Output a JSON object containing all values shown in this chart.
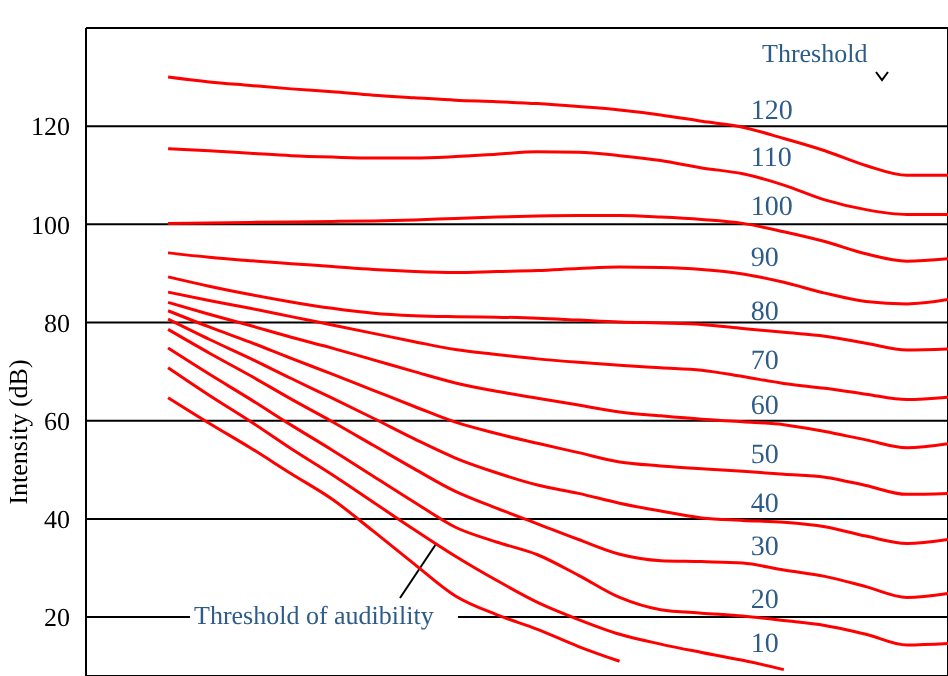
{
  "chart_data": {
    "type": "line",
    "ylabel": "Intensity (dB)",
    "categories": [
      null,
      null,
      null,
      null,
      null,
      null,
      null,
      null,
      null,
      null,
      null,
      null,
      null,
      null,
      null,
      null,
      null,
      null,
      null,
      null,
      null,
      null
    ],
    "series": [
      {
        "name": "120",
        "color": "#ff0000",
        "values": [
          null,
          null,
          130,
          129,
          128.3,
          127.6,
          127,
          126.3,
          125.8,
          125.3,
          125,
          124.6,
          124,
          123.3,
          122.3,
          121,
          119.8,
          117.5,
          115,
          112,
          110,
          110
        ]
      },
      {
        "name": "110",
        "color": "#ff0000",
        "values": [
          null,
          null,
          115.4,
          115,
          114.5,
          114,
          113.7,
          113.5,
          113.5,
          113.8,
          114.3,
          114.8,
          114.7,
          114,
          113,
          111.5,
          110.3,
          108,
          105,
          103,
          102,
          102
        ]
      },
      {
        "name": "100",
        "color": "#ff0000",
        "values": [
          null,
          null,
          100.2,
          100.3,
          100.4,
          100.5,
          100.6,
          100.7,
          100.9,
          101.2,
          101.5,
          101.7,
          101.8,
          101.8,
          101.5,
          101,
          100.2,
          98.5,
          96.5,
          94,
          92.5,
          93
        ]
      },
      {
        "name": "90",
        "color": "#ff0000",
        "values": [
          null,
          null,
          94.2,
          93.3,
          92.6,
          92,
          91.4,
          90.8,
          90.4,
          90.2,
          90.4,
          90.6,
          91,
          91.3,
          91.2,
          90.8,
          89.9,
          88.2,
          86,
          84.3,
          83.8,
          84.7
        ]
      },
      {
        "name": "80",
        "color": "#ff0000",
        "values": [
          null,
          null,
          89.3,
          87.4,
          85.7,
          84.2,
          82.9,
          81.9,
          81.4,
          81.2,
          81.1,
          80.9,
          80.5,
          80.1,
          79.9,
          79.6,
          78.8,
          78,
          77.2,
          75.8,
          74.4,
          74.6
        ]
      },
      {
        "name": "70",
        "color": "#ff0000",
        "values": [
          null,
          null,
          86.2,
          84.5,
          82.9,
          81.2,
          79.5,
          77.8,
          76.1,
          74.5,
          73.5,
          72.6,
          71.9,
          71.3,
          70.8,
          70.3,
          69,
          67.6,
          66.6,
          65.4,
          64.3,
          64.8
        ]
      },
      {
        "name": "60",
        "color": "#ff0000",
        "values": [
          null,
          null,
          84.1,
          81.7,
          79.4,
          77,
          74.8,
          72.4,
          70,
          67.7,
          66,
          64.6,
          63.2,
          61.8,
          61,
          60.3,
          59.8,
          59.2,
          57.8,
          56.1,
          54.5,
          55.3
        ]
      },
      {
        "name": "50",
        "color": "#ff0000",
        "values": [
          null,
          null,
          82.4,
          79.1,
          76,
          72.7,
          69.5,
          66.2,
          62.9,
          59.7,
          57.4,
          55.4,
          53.5,
          51.6,
          50.8,
          50.2,
          49.7,
          49.1,
          48.5,
          46.8,
          45,
          45.2
        ]
      },
      {
        "name": "40",
        "color": "#ff0000",
        "values": [
          null,
          null,
          80.7,
          76.6,
          72.7,
          68.6,
          64.6,
          60.5,
          56.3,
          52.4,
          49.4,
          46.9,
          45.2,
          43.2,
          41.6,
          40.2,
          39.7,
          39.3,
          38.4,
          36.5,
          35,
          35.8
        ]
      },
      {
        "name": "30",
        "color": "#ff0000",
        "values": [
          null,
          null,
          78.6,
          73.8,
          69.2,
          64.4,
          59.8,
          55,
          50.2,
          45.6,
          42.2,
          39,
          35.8,
          32.8,
          31.5,
          31.3,
          31,
          29.6,
          28.3,
          26.2,
          24,
          24.8
        ]
      },
      {
        "name": "20",
        "color": "#ff0000",
        "values": [
          null,
          null,
          74.8,
          69.5,
          64.4,
          59.1,
          54,
          48.7,
          43.4,
          38.3,
          35.3,
          32.7,
          28.5,
          24,
          21.5,
          20.8,
          20.2,
          19.3,
          18.3,
          16.5,
          14.3,
          14.6
        ]
      },
      {
        "name": "10",
        "color": "#ff0000",
        "values": [
          null,
          null,
          70.8,
          65.2,
          59.9,
          54.3,
          49,
          43.4,
          37.8,
          32.4,
          27.5,
          23,
          19.5,
          16.5,
          14.5,
          12.8,
          11.2,
          9.3,
          null,
          null,
          null,
          null
        ]
      },
      {
        "color": "#ff0000",
        "values": [
          null,
          null,
          64.7,
          59.5,
          54.5,
          49.2,
          44,
          37.5,
          30.8,
          24.3,
          20.5,
          17.5,
          14,
          11,
          null,
          null,
          null,
          null,
          null,
          null,
          null,
          null
        ]
      }
    ],
    "ylim": [
      8,
      140
    ],
    "yticks": [
      20,
      40,
      60,
      80,
      100,
      120
    ],
    "grid": true,
    "tick_labels": "y",
    "marker": "none",
    "line_style": "solid",
    "annotations": [
      "Threshold",
      "Threshold of audibility"
    ]
  }
}
